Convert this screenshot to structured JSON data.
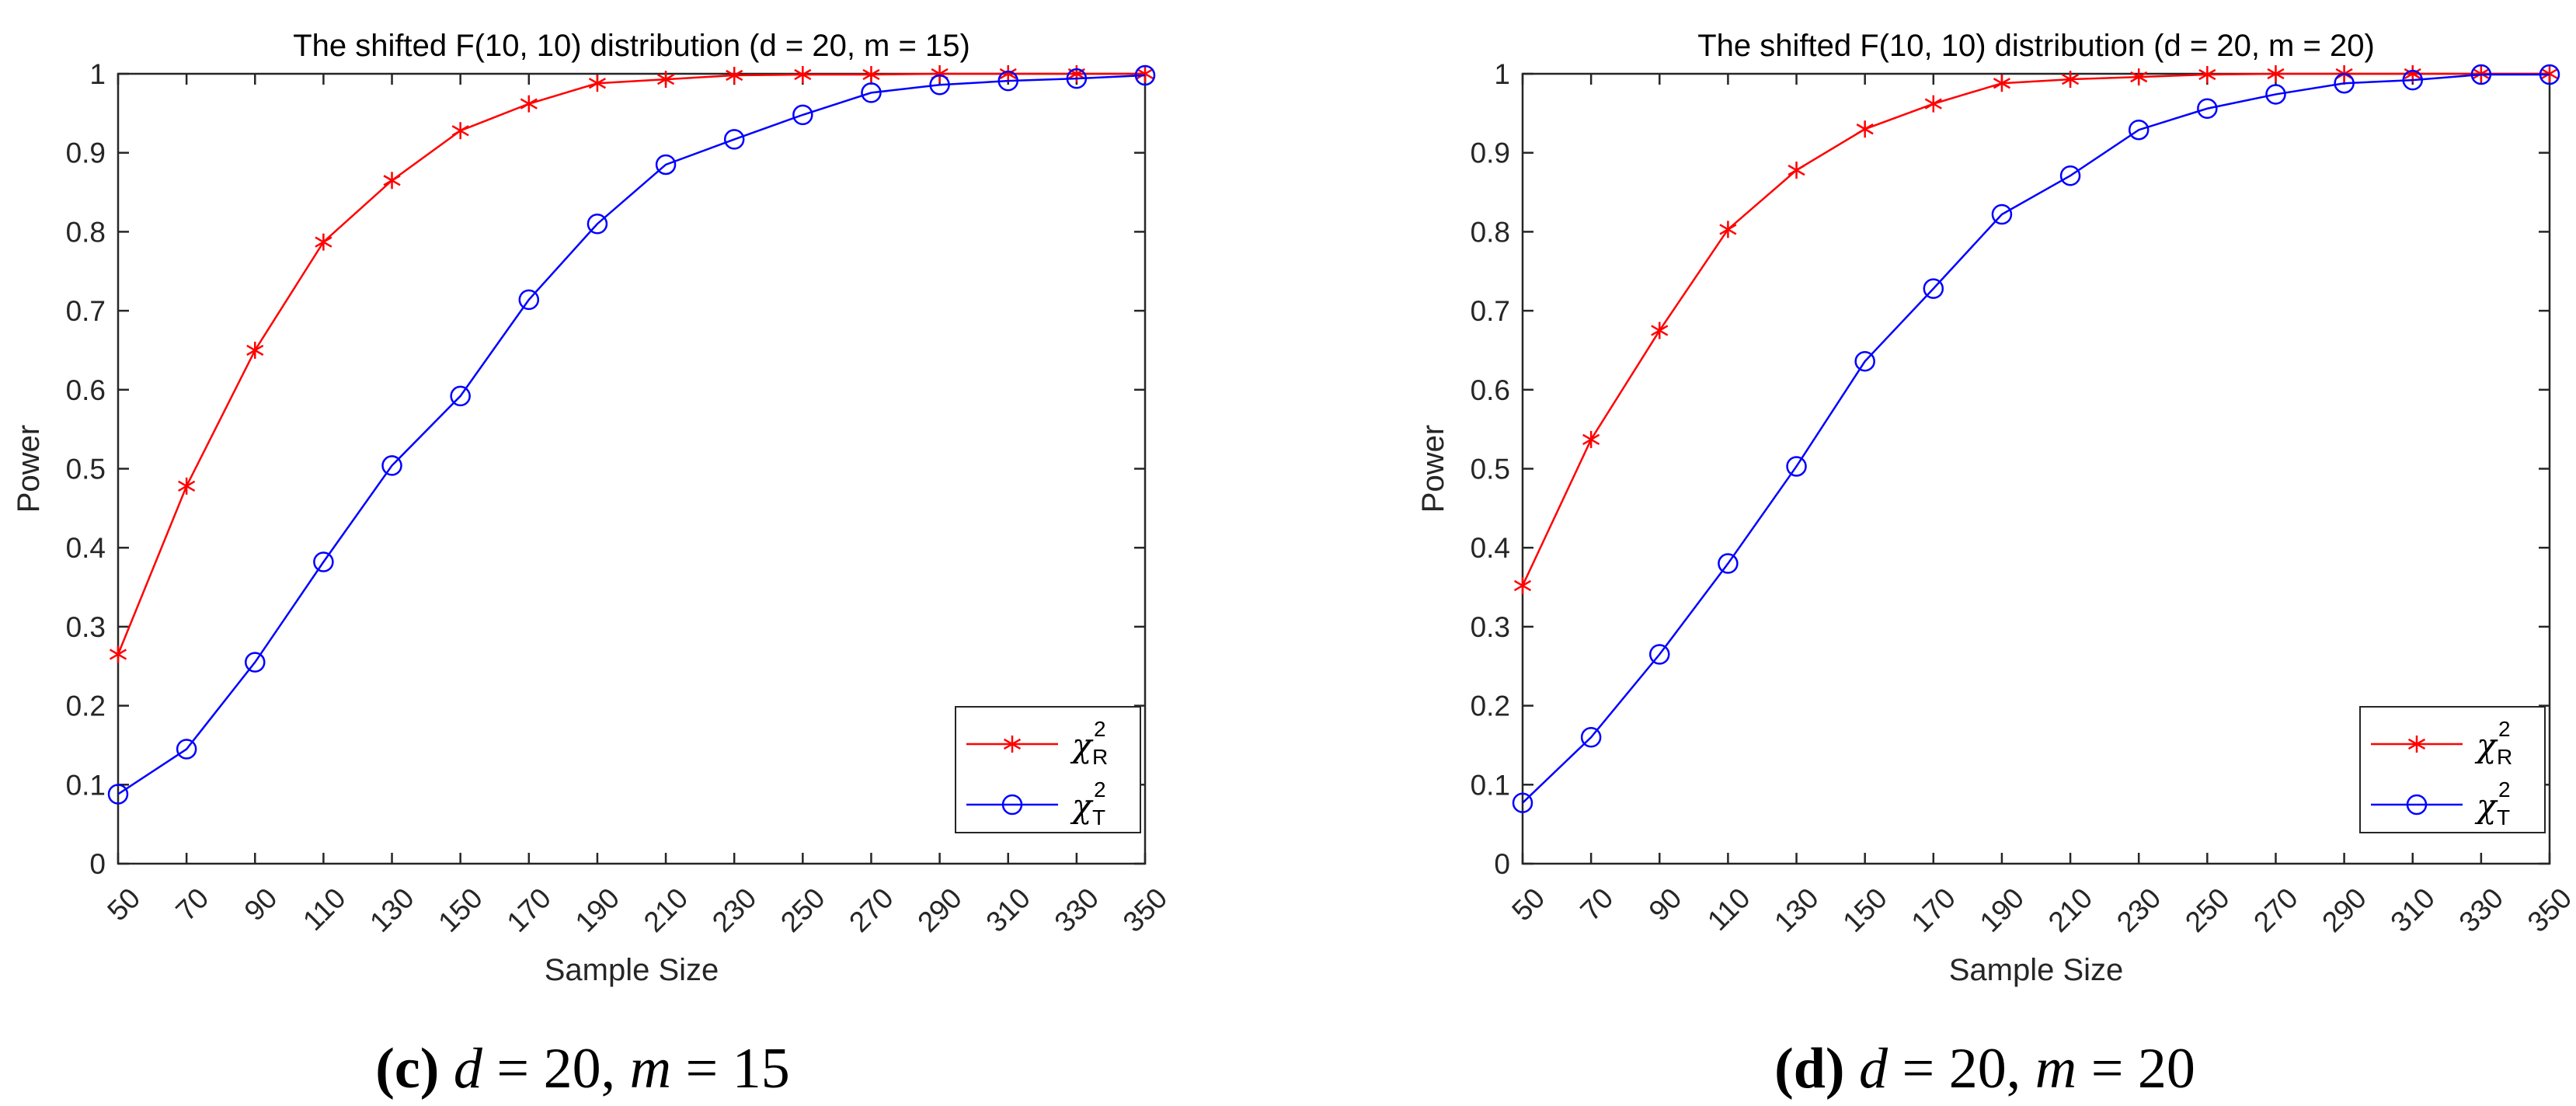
{
  "chart_data": [
    {
      "type": "line",
      "title": "The shifted F(10, 10) distribution (d = 20, m = 15)",
      "xlabel": "Sample Size",
      "ylabel": "Power",
      "x": [
        50,
        70,
        90,
        110,
        130,
        150,
        170,
        190,
        210,
        230,
        250,
        270,
        290,
        310,
        330,
        350
      ],
      "xticks": [
        "50",
        "70",
        "90",
        "110",
        "130",
        "150",
        "170",
        "190",
        "210",
        "230",
        "250",
        "270",
        "290",
        "310",
        "330",
        "350"
      ],
      "ylim": [
        0,
        1
      ],
      "yticks": [
        "0",
        "0.1",
        "0.2",
        "0.3",
        "0.4",
        "0.5",
        "0.6",
        "0.7",
        "0.8",
        "0.9",
        "1"
      ],
      "legend_position": "bottom-right",
      "series": [
        {
          "name": "χ",
          "sup": "2",
          "sub": "R",
          "color": "#ff0000",
          "marker": "asterisk",
          "values": [
            0.265,
            0.478,
            0.65,
            0.787,
            0.865,
            0.928,
            0.962,
            0.988,
            0.993,
            0.998,
            0.999,
            0.999,
            1.0,
            1.0,
            1.0,
            1.0
          ]
        },
        {
          "name": "χ",
          "sup": "2",
          "sub": "T",
          "color": "#0000ff",
          "marker": "circle",
          "values": [
            0.088,
            0.145,
            0.255,
            0.382,
            0.504,
            0.592,
            0.714,
            0.81,
            0.885,
            0.917,
            0.948,
            0.976,
            0.986,
            0.991,
            0.994,
            0.998
          ]
        }
      ],
      "caption": {
        "letter": "(c)",
        "d_label": "d",
        "d_value": "= 20,",
        "m_label": "m",
        "m_value": "= 15"
      }
    },
    {
      "type": "line",
      "title": "The shifted F(10, 10) distribution (d = 20, m = 20)",
      "xlabel": "Sample Size",
      "ylabel": "Power",
      "x": [
        50,
        70,
        90,
        110,
        130,
        150,
        170,
        190,
        210,
        230,
        250,
        270,
        290,
        310,
        330,
        350
      ],
      "xticks": [
        "50",
        "70",
        "90",
        "110",
        "130",
        "150",
        "170",
        "190",
        "210",
        "230",
        "250",
        "270",
        "290",
        "310",
        "330",
        "350"
      ],
      "ylim": [
        0,
        1
      ],
      "yticks": [
        "0",
        "0.1",
        "0.2",
        "0.3",
        "0.4",
        "0.5",
        "0.6",
        "0.7",
        "0.8",
        "0.9",
        "1"
      ],
      "legend_position": "bottom-right",
      "series": [
        {
          "name": "χ",
          "sup": "2",
          "sub": "R",
          "color": "#ff0000",
          "marker": "asterisk",
          "values": [
            0.352,
            0.537,
            0.675,
            0.803,
            0.878,
            0.93,
            0.962,
            0.988,
            0.993,
            0.996,
            0.999,
            1.0,
            1.0,
            1.0,
            1.0,
            1.0
          ]
        },
        {
          "name": "χ",
          "sup": "2",
          "sub": "T",
          "color": "#0000ff",
          "marker": "circle",
          "values": [
            0.077,
            0.16,
            0.265,
            0.38,
            0.503,
            0.636,
            0.728,
            0.822,
            0.871,
            0.929,
            0.956,
            0.974,
            0.988,
            0.992,
            0.999,
            0.999
          ]
        }
      ],
      "caption": {
        "letter": "(d)",
        "d_label": "d",
        "d_value": "= 20,",
        "m_label": "m",
        "m_value": "= 20"
      }
    }
  ]
}
